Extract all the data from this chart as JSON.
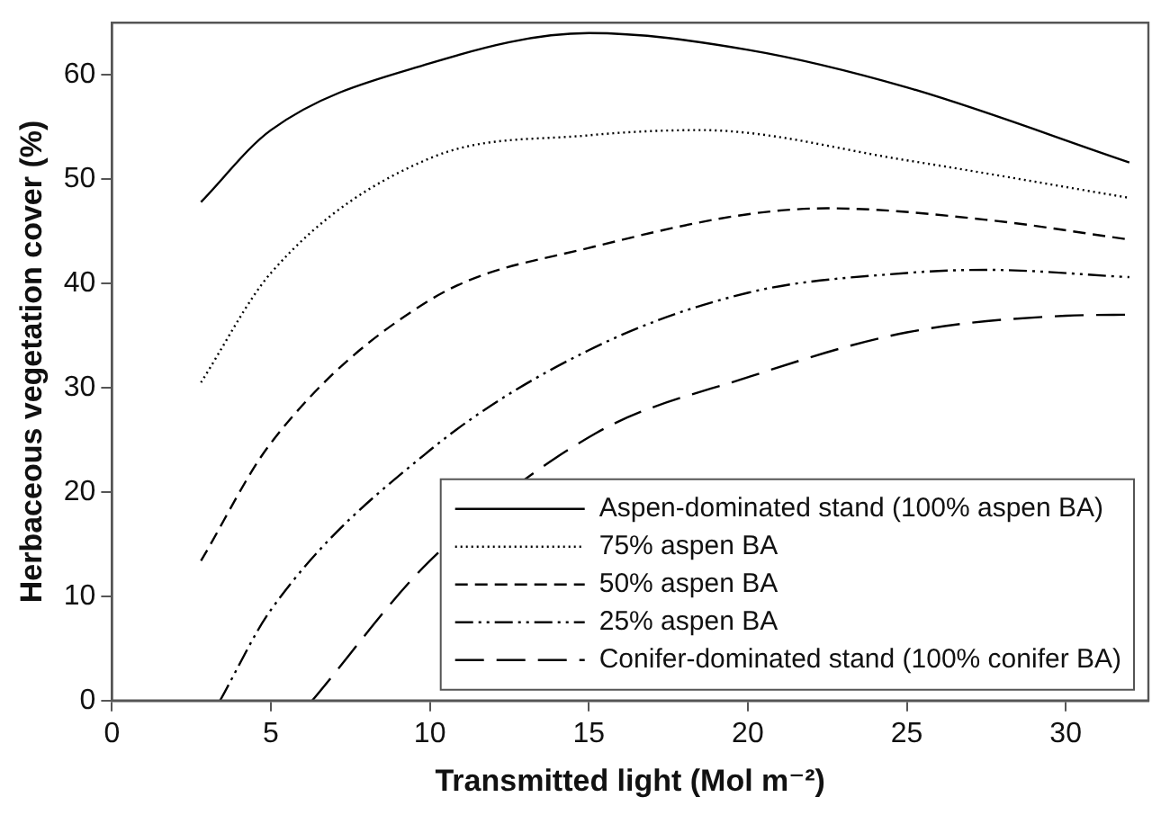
{
  "chart_data": {
    "type": "line",
    "xlabel": "Transmitted light (Mol m⁻²)",
    "ylabel": "Herbaceous vegetation cover (%)",
    "xlim": [
      0,
      32.6
    ],
    "ylim": [
      0,
      65
    ],
    "xticks": [
      0,
      5,
      10,
      15,
      20,
      25,
      30
    ],
    "yticks": [
      0,
      10,
      20,
      30,
      40,
      50,
      60
    ],
    "grid": false,
    "legend": "bottom right",
    "marker": "none",
    "series": [
      {
        "name": "Aspen-dominated stand (100% aspen BA)",
        "color": "#000000",
        "line_style": "solid",
        "x": [
          2.8,
          5,
          10,
          15,
          20,
          25,
          32
        ],
        "values": [
          47.8,
          54.7,
          61.1,
          64.0,
          62.4,
          58.8,
          51.6
        ]
      },
      {
        "name": "75% aspen BA",
        "color": "#000000",
        "line_style": "dotted",
        "x": [
          2.8,
          5,
          10,
          15,
          18.5,
          25,
          32
        ],
        "values": [
          30.5,
          41.0,
          52.0,
          54.2,
          54.7,
          51.8,
          48.2
        ]
      },
      {
        "name": "50% aspen BA",
        "color": "#000000",
        "line_style": "dashed",
        "x": [
          2.8,
          5,
          10,
          15,
          22.5,
          27.5,
          32
        ],
        "values": [
          13.4,
          24.7,
          38.4,
          43.4,
          47.2,
          46.1,
          44.2
        ]
      },
      {
        "name": "25% aspen BA",
        "color": "#000000",
        "line_style": "dashdotdot",
        "x": [
          3.4,
          5,
          10,
          15,
          20,
          25,
          27.5,
          32
        ],
        "values": [
          0,
          8.7,
          24.0,
          33.6,
          39.1,
          41.0,
          41.3,
          40.6
        ]
      },
      {
        "name": "Conifer-dominated stand (100% conifer BA)",
        "color": "#000000",
        "line_style": "longdash",
        "x": [
          6.3,
          10,
          15.2,
          20,
          25,
          30,
          32
        ],
        "values": [
          0,
          13.4,
          25.6,
          31.0,
          35.3,
          36.9,
          37.0
        ]
      }
    ]
  }
}
